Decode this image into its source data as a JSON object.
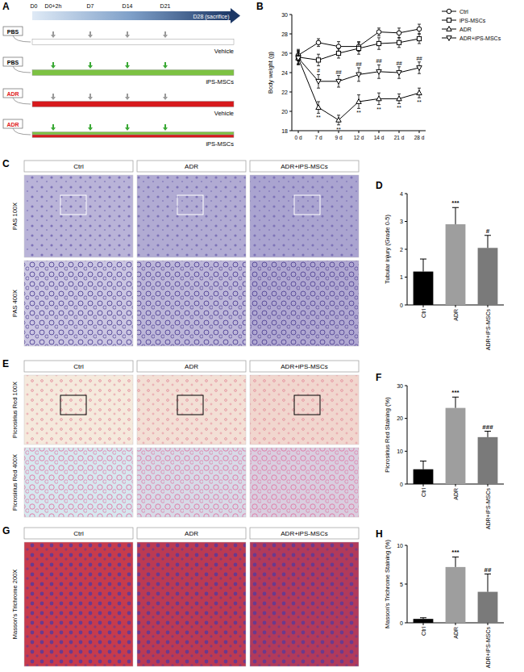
{
  "schedule": {
    "panel_label": "A",
    "timepoints": [
      "D0",
      "D0+2h",
      "D7",
      "D14",
      "D21",
      "D28 (sacrifice)"
    ],
    "rows": [
      {
        "group": "PBS",
        "group_color": "#000000",
        "treatment": "Vehicle",
        "line_colors": [
          "#ffffff"
        ],
        "arrow_color": "#9a9a9a"
      },
      {
        "group": "PBS",
        "group_color": "#000000",
        "treatment": "iPS-MSCs",
        "line_colors": [
          "#7dc242"
        ],
        "arrow_color": "#3aa935"
      },
      {
        "group": "ADR",
        "group_color": "#e0201b",
        "treatment": "Vehicle",
        "line_colors": [
          "#d7191c"
        ],
        "arrow_color": "#9a9a9a"
      },
      {
        "group": "ADR",
        "group_color": "#e0201b",
        "treatment": "iPS-MSCs",
        "line_colors": [
          "#7dc242",
          "#d7191c"
        ],
        "arrow_color": "#3aa935"
      }
    ]
  },
  "histology": [
    {
      "panel_label": "C",
      "columns": [
        "Ctrl",
        "ADR",
        "ADR+iPS-MSCs"
      ],
      "rows": [
        "PAS 100X",
        "PAS 400X"
      ]
    },
    {
      "panel_label": "E",
      "columns": [
        "Ctrl",
        "ADR",
        "ADR+iPS-MSCs"
      ],
      "rows": [
        "Picrosirius Red 100X",
        "Picrosirius Red 400X"
      ]
    },
    {
      "panel_label": "G",
      "columns": [
        "Ctrl",
        "ADR",
        "ADR+iPS-MSCs"
      ],
      "rows": [
        "Masson's Trichrome 200X"
      ]
    }
  ],
  "chart_data": [
    {
      "panel_label": "B",
      "type": "line",
      "y_label": "Body weight (g)",
      "categories": [
        "0 d",
        "7 d",
        "9 d",
        "12 d",
        "14 d",
        "21 d",
        "28 d"
      ],
      "ylim": [
        18,
        30
      ],
      "yticks": [
        18,
        20,
        22,
        24,
        26,
        28,
        30
      ],
      "legend": "right",
      "series": [
        {
          "name": "Ctrl",
          "color": "#000000",
          "marker": "circle",
          "values": [
            25.8,
            27.1,
            26.7,
            26.7,
            28.2,
            28.1,
            28.5
          ],
          "errors": [
            0.6,
            0.4,
            0.5,
            0.5,
            0.4,
            0.5,
            0.5
          ],
          "significance": [
            null,
            null,
            null,
            null,
            null,
            null,
            null
          ]
        },
        {
          "name": "iPS-MSCs",
          "color": "#000000",
          "marker": "square",
          "values": [
            25.6,
            25.3,
            26.0,
            26.5,
            27.0,
            27.1,
            27.5
          ],
          "errors": [
            0.7,
            0.6,
            0.5,
            0.6,
            0.6,
            0.5,
            0.5
          ],
          "significance": [
            null,
            null,
            null,
            null,
            null,
            null,
            null
          ]
        },
        {
          "name": "ADR",
          "color": "#000000",
          "marker": "triangle-up",
          "values": [
            25.5,
            20.4,
            19.1,
            21.0,
            21.3,
            21.3,
            21.9
          ],
          "errors": [
            0.6,
            0.6,
            0.5,
            0.7,
            0.6,
            0.5,
            0.5
          ],
          "significance": [
            null,
            "**",
            "**",
            "**",
            "**",
            "**",
            "**"
          ]
        },
        {
          "name": "ADR+iPS-MSCs",
          "color": "#000000",
          "marker": "triangle-down",
          "values": [
            25.5,
            23.1,
            23.1,
            23.8,
            24.1,
            24.0,
            24.5
          ],
          "errors": [
            0.7,
            0.7,
            0.6,
            0.7,
            0.7,
            0.6,
            0.6
          ],
          "significance": [
            null,
            "#",
            "##",
            "##",
            "##",
            "##",
            "##"
          ]
        }
      ]
    },
    {
      "panel_label": "D",
      "type": "bar",
      "y_label": "Tubular injury (Grade 0-5)",
      "categories": [
        "Ctrl",
        "ADR",
        "ADR+iPS-MSCs"
      ],
      "values": [
        1.2,
        2.9,
        2.05
      ],
      "errors": [
        0.45,
        0.6,
        0.45
      ],
      "colors": [
        "#000000",
        "#9e9e9e",
        "#7a7a7a"
      ],
      "significance": [
        null,
        "***",
        "#"
      ],
      "ylim": [
        0,
        4
      ],
      "yticks": [
        0,
        1,
        2,
        3,
        4
      ]
    },
    {
      "panel_label": "F",
      "type": "bar",
      "y_label": "Picrosirius Red Staining (%)",
      "categories": [
        "Ctrl",
        "ADR",
        "ADR+iPS-MSCs"
      ],
      "values": [
        4.5,
        23.2,
        14.3
      ],
      "errors": [
        2.5,
        3.3,
        1.8
      ],
      "colors": [
        "#000000",
        "#9e9e9e",
        "#7a7a7a"
      ],
      "significance": [
        null,
        "***",
        "###"
      ],
      "ylim": [
        0,
        30
      ],
      "yticks": [
        0,
        10,
        20,
        30
      ]
    },
    {
      "panel_label": "H",
      "type": "bar",
      "y_label": "Masson's Trichrome Staining (%)",
      "categories": [
        "Ctrl",
        "ADR",
        "ADR+iPS-MSCs"
      ],
      "values": [
        0.5,
        7.2,
        4.0
      ],
      "errors": [
        0.15,
        1.3,
        2.3
      ],
      "colors": [
        "#000000",
        "#9e9e9e",
        "#7a7a7a"
      ],
      "significance": [
        null,
        "***",
        "##"
      ],
      "ylim": [
        0,
        10
      ],
      "yticks": [
        0,
        5,
        10
      ]
    }
  ]
}
